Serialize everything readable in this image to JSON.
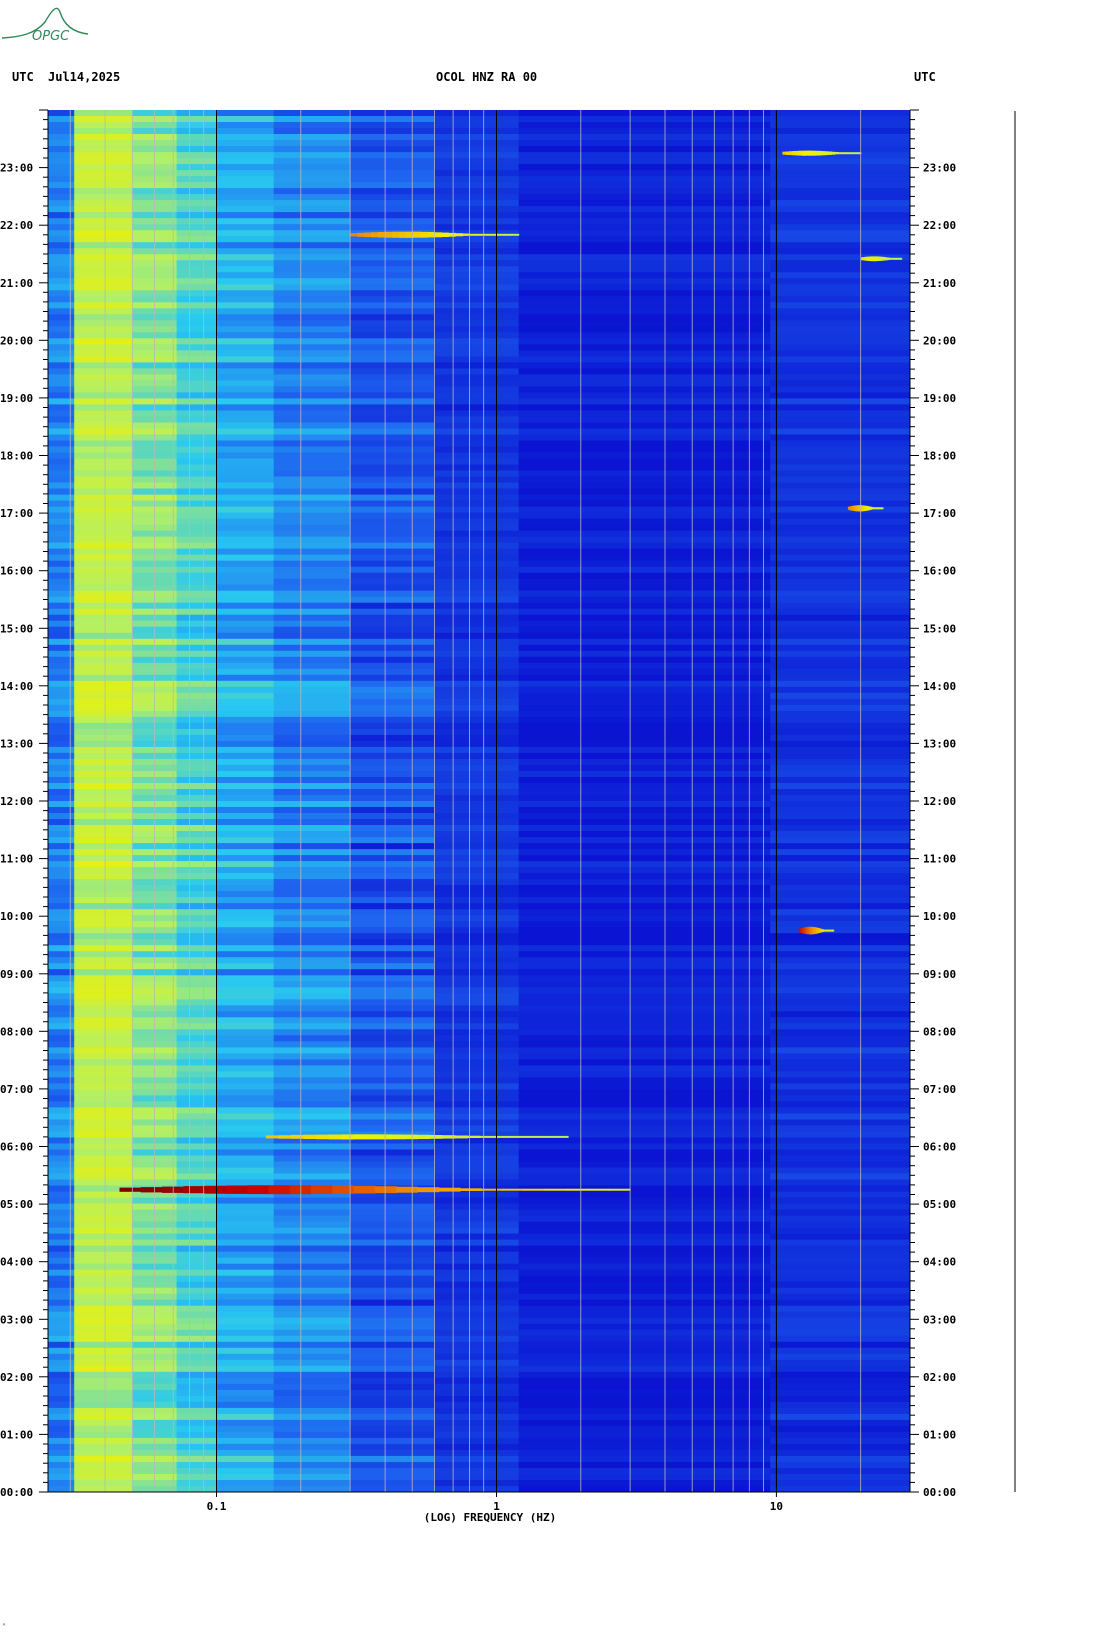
{
  "header": {
    "left_tz": "UTC",
    "date": "Jul14,2025",
    "station": "OCOL HNZ RA 00",
    "right_tz": "UTC"
  },
  "logo": {
    "text": "OPGC",
    "color": "#2e8b57"
  },
  "corner_mark": "ᴬ",
  "chart_data": {
    "type": "heatmap",
    "xlabel": "(LOG) FREQUENCY (HZ)",
    "xscale": "log",
    "xlim": [
      0.025,
      30
    ],
    "x_ticks": [
      {
        "value": 0.1,
        "label": "0.1"
      },
      {
        "value": 1,
        "label": "1"
      },
      {
        "value": 10,
        "label": "10"
      }
    ],
    "y_ticks_left": [
      "00:00",
      "01:00",
      "02:00",
      "03:00",
      "04:00",
      "05:00",
      "06:00",
      "07:00",
      "08:00",
      "09:00",
      "10:00",
      "11:00",
      "12:00",
      "13:00",
      "14:00",
      "15:00",
      "16:00",
      "17:00",
      "18:00",
      "19:00",
      "20:00",
      "21:00",
      "22:00",
      "23:00"
    ],
    "y_ticks_right": [
      "00:00",
      "01:00",
      "02:00",
      "03:00",
      "04:00",
      "05:00",
      "06:00",
      "07:00",
      "08:00",
      "09:00",
      "10:00",
      "11:00",
      "12:00",
      "13:00",
      "14:00",
      "15:00",
      "16:00",
      "17:00",
      "18:00",
      "19:00",
      "20:00",
      "21:00",
      "22:00",
      "23:00"
    ],
    "ylim_hours": [
      0,
      24
    ],
    "colormap": [
      "#0a14d2",
      "#1e64f0",
      "#28c8f0",
      "#b4f064",
      "#f0f000",
      "#f08c00",
      "#c80000",
      "#6e0000"
    ],
    "events": [
      {
        "time": "05:15",
        "fmin": 0.045,
        "fmax": 3.0,
        "level": 1.0
      },
      {
        "time": "06:10",
        "fmin": 0.15,
        "fmax": 1.8,
        "level": 0.45
      },
      {
        "time": "21:50",
        "fmin": 0.3,
        "fmax": 1.2,
        "level": 0.6
      },
      {
        "time": "09:45",
        "fmin": 12,
        "fmax": 16,
        "level": 0.8
      },
      {
        "time": "17:05",
        "fmin": 18,
        "fmax": 24,
        "level": 0.6
      },
      {
        "time": "23:15",
        "fmin": 10.5,
        "fmax": 20,
        "level": 0.45
      },
      {
        "time": "21:25",
        "fmin": 20,
        "fmax": 28,
        "level": 0.4
      }
    ]
  }
}
